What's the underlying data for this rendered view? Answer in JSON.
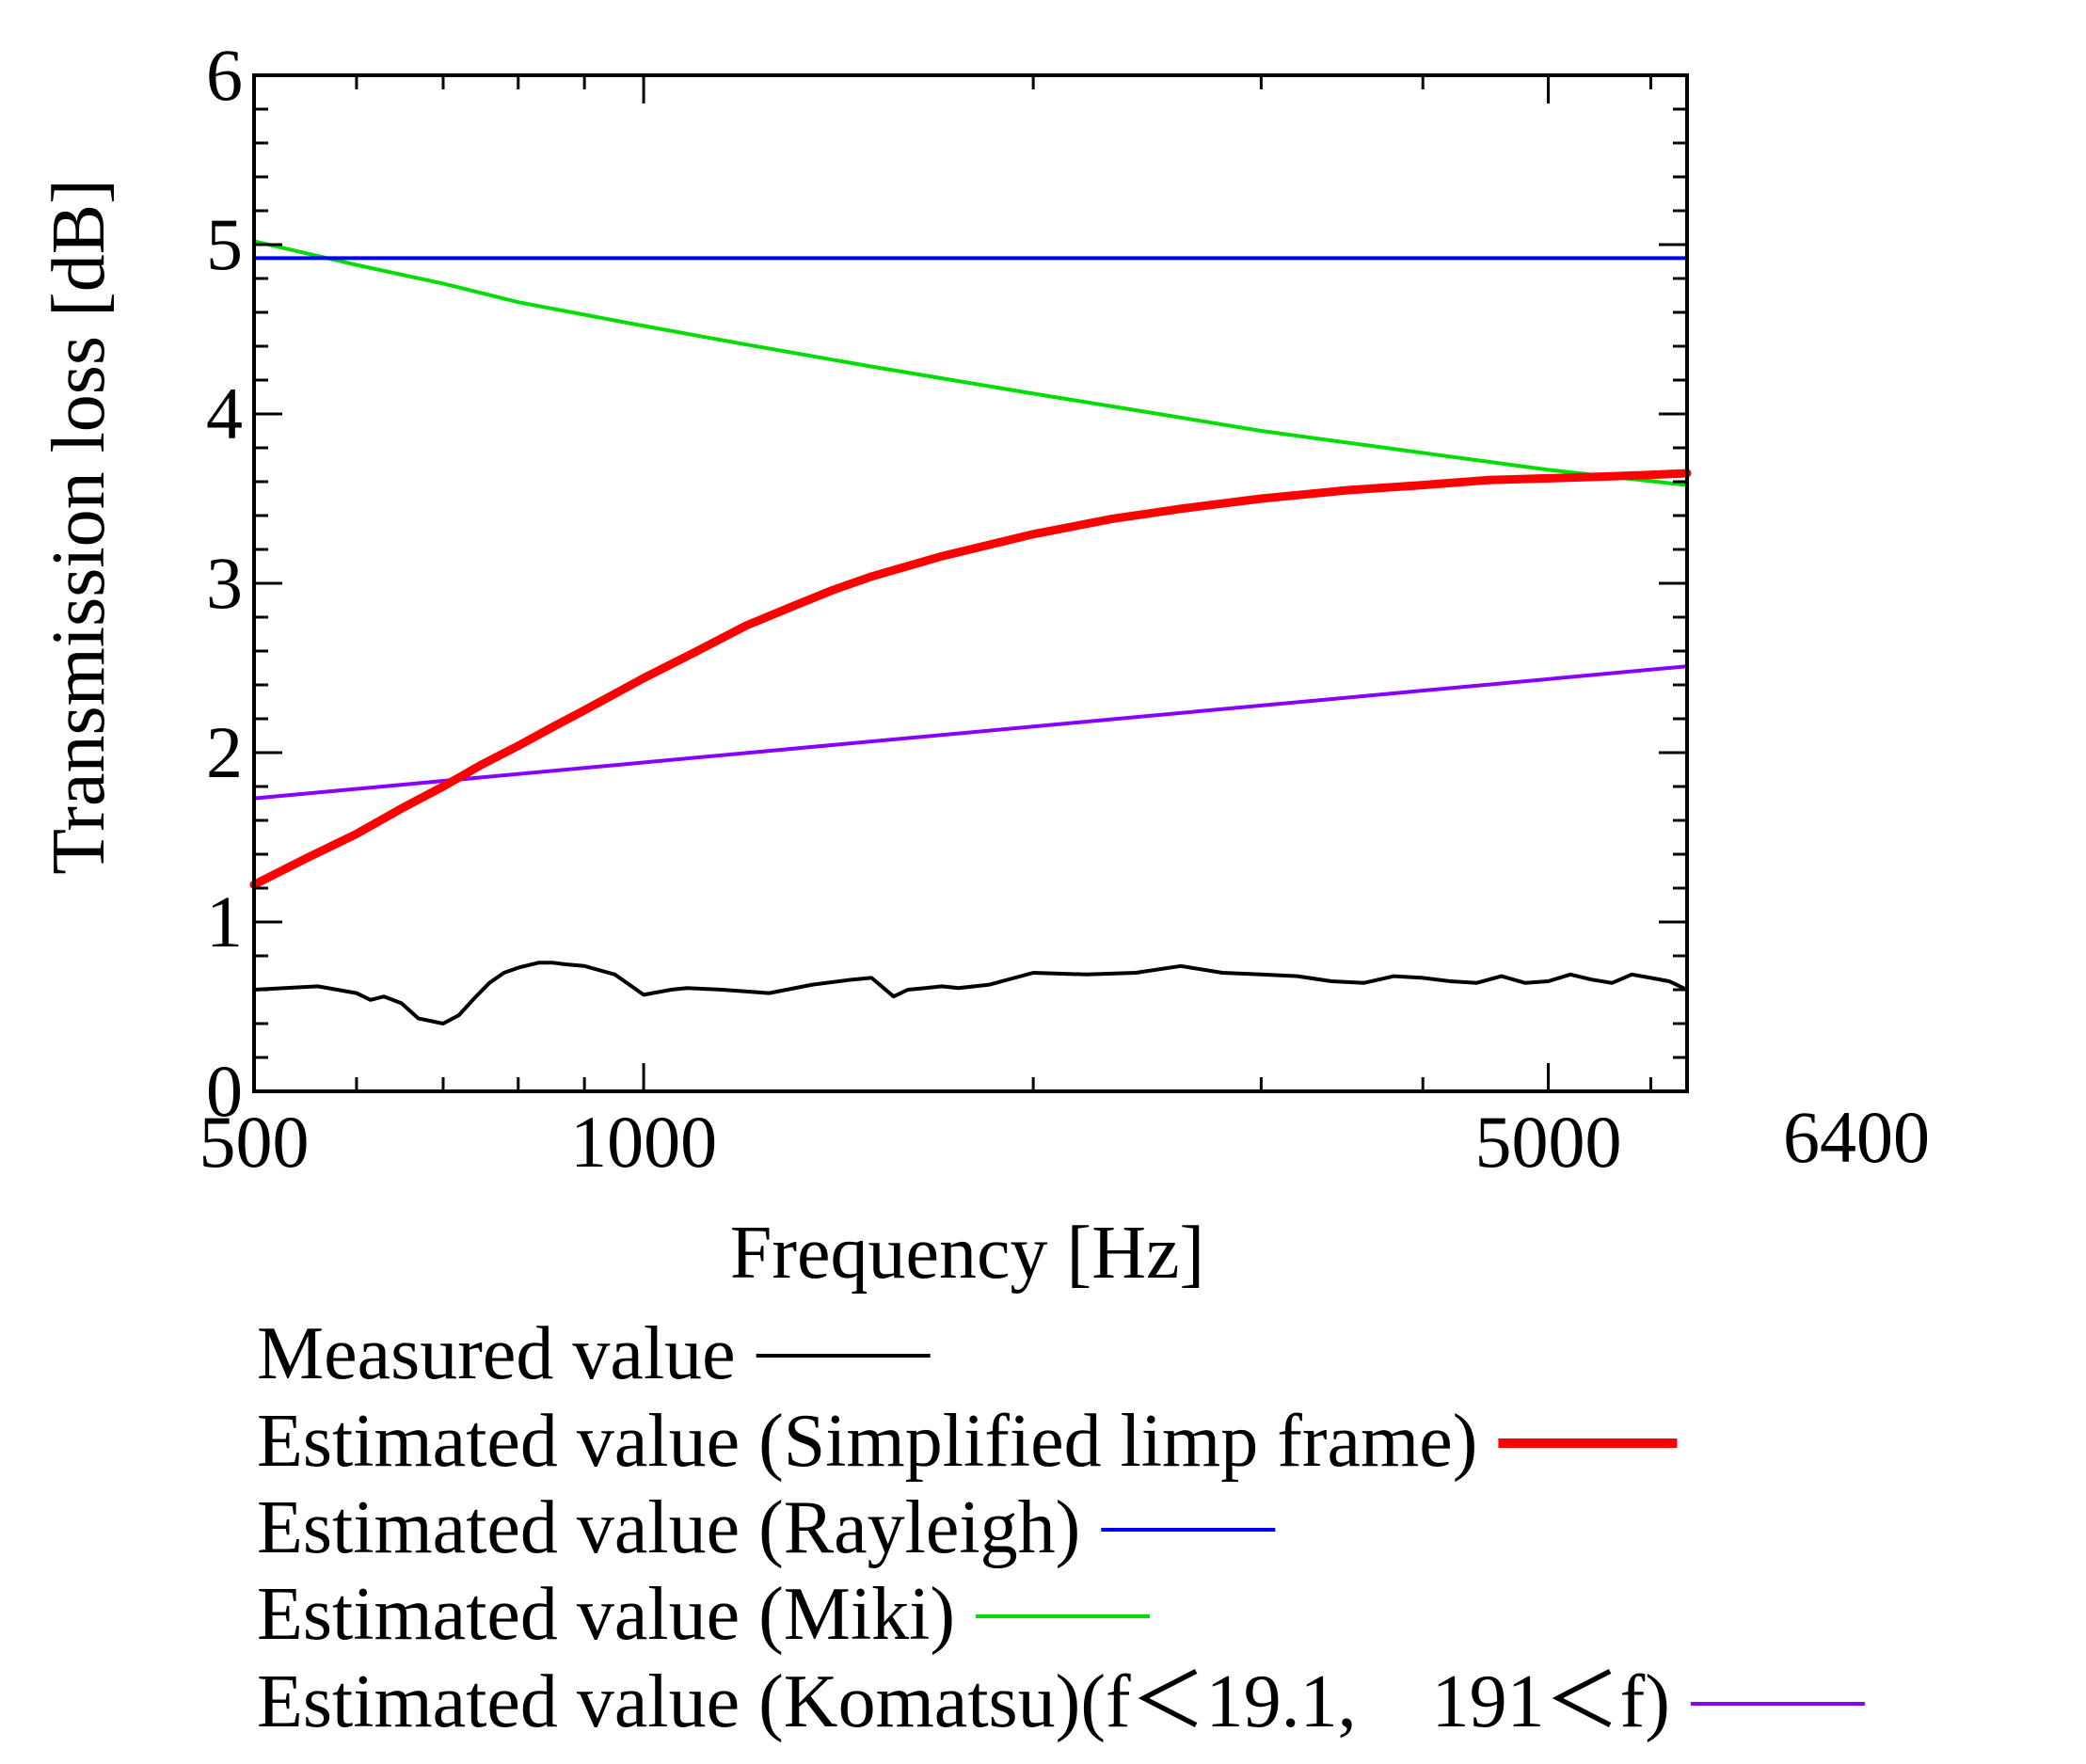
{
  "chart_data": {
    "type": "line",
    "title": "",
    "xlabel": "Frequency [Hz]",
    "ylabel": "Transmission loss [dB]",
    "xscale": "log",
    "xlim": [
      500,
      6400
    ],
    "ylim": [
      0,
      6
    ],
    "x_tick_labels": [
      "500",
      "1000",
      "5000",
      "6400"
    ],
    "x_tick_values": [
      500,
      1000,
      5000,
      6400
    ],
    "y_tick_labels": [
      "0",
      "1",
      "2",
      "3",
      "4",
      "5",
      "6"
    ],
    "y_tick_values": [
      0,
      1,
      2,
      3,
      4,
      5,
      6
    ],
    "legend_position": "below",
    "series": [
      {
        "name": "Measured value",
        "color": "#000000",
        "style": "thin",
        "x": [
          500,
          560,
          600,
          615,
          630,
          650,
          670,
          700,
          720,
          740,
          760,
          780,
          800,
          830,
          850,
          870,
          900,
          950,
          1000,
          1050,
          1080,
          1150,
          1250,
          1350,
          1450,
          1500,
          1560,
          1600,
          1650,
          1700,
          1750,
          1850,
          2000,
          2200,
          2400,
          2600,
          2800,
          3000,
          3200,
          3400,
          3600,
          3800,
          4000,
          4200,
          4400,
          4600,
          4800,
          5000,
          5200,
          5400,
          5600,
          5800,
          6000,
          6200,
          6400
        ],
        "values": [
          0.6,
          0.62,
          0.58,
          0.54,
          0.56,
          0.52,
          0.43,
          0.4,
          0.45,
          0.55,
          0.64,
          0.7,
          0.73,
          0.76,
          0.76,
          0.75,
          0.74,
          0.69,
          0.57,
          0.6,
          0.61,
          0.6,
          0.58,
          0.63,
          0.66,
          0.67,
          0.56,
          0.6,
          0.61,
          0.62,
          0.61,
          0.63,
          0.7,
          0.69,
          0.7,
          0.74,
          0.7,
          0.69,
          0.68,
          0.65,
          0.64,
          0.68,
          0.67,
          0.65,
          0.64,
          0.68,
          0.64,
          0.65,
          0.69,
          0.66,
          0.64,
          0.69,
          0.67,
          0.65,
          0.6
        ]
      },
      {
        "name": "Estimated value (Simplified limp frame)",
        "color": "#ff0000",
        "style": "thick",
        "x": [
          500,
          550,
          600,
          650,
          700,
          750,
          800,
          850,
          900,
          1000,
          1100,
          1200,
          1300,
          1400,
          1500,
          1700,
          2000,
          2300,
          2600,
          3000,
          3500,
          4000,
          4500,
          5000,
          5500,
          6000,
          6400
        ],
        "values": [
          1.22,
          1.38,
          1.52,
          1.67,
          1.8,
          1.93,
          2.04,
          2.15,
          2.25,
          2.44,
          2.6,
          2.75,
          2.86,
          2.96,
          3.04,
          3.16,
          3.29,
          3.38,
          3.44,
          3.5,
          3.55,
          3.58,
          3.61,
          3.62,
          3.63,
          3.64,
          3.65
        ]
      },
      {
        "name": "Estimated value (Rayleigh)",
        "color": "#0000ff",
        "style": "thin",
        "x": [
          500,
          6400
        ],
        "values": [
          4.92,
          4.92
        ]
      },
      {
        "name": "Estimated value (Miki)",
        "color": "#00dd00",
        "style": "thin",
        "x": [
          500,
          600,
          700,
          800,
          1000,
          1200,
          1500,
          2000,
          2500,
          3000,
          4000,
          5000,
          6400
        ],
        "values": [
          5.02,
          4.88,
          4.77,
          4.66,
          4.52,
          4.41,
          4.28,
          4.12,
          4.0,
          3.9,
          3.77,
          3.67,
          3.58
        ]
      },
      {
        "name": "Estimated value (Komatsu)(f＜19.1,　191＜f)",
        "color": "#8800ff",
        "style": "thin",
        "x": [
          500,
          6400
        ],
        "values": [
          1.73,
          2.51
        ]
      }
    ]
  }
}
